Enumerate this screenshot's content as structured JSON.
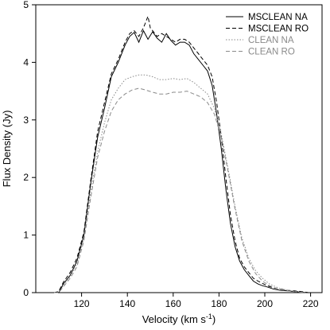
{
  "chart_data": {
    "type": "line",
    "title": "",
    "xlabel": "Velocity (km s",
    "xlabel_sup": "-1",
    "xlabel_close": ")",
    "ylabel": "Flux Density (Jy)",
    "xlim": [
      100,
      225
    ],
    "ylim": [
      0,
      5
    ],
    "xticks": [
      120,
      140,
      160,
      180,
      200,
      220
    ],
    "yticks": [
      0,
      1,
      2,
      3,
      4,
      5
    ],
    "grid": false,
    "legend_position": "top-right",
    "series": [
      {
        "name": "MSCLEAN NA",
        "color": "#000000",
        "dash": "solid",
        "x": [
          108,
          110,
          112,
          115,
          118,
          121,
          124,
          127,
          130,
          133,
          136,
          139,
          141,
          143,
          145,
          147,
          149,
          151,
          153,
          155,
          157,
          159,
          161,
          163,
          165,
          167,
          169,
          171,
          173,
          175,
          177,
          179,
          181,
          183,
          185,
          187,
          189,
          191,
          193,
          195,
          197,
          199,
          201,
          204,
          207,
          210,
          213,
          216,
          219
        ],
        "y": [
          0.0,
          0.0,
          0.15,
          0.3,
          0.55,
          1.0,
          1.9,
          2.7,
          3.2,
          3.75,
          4.0,
          4.3,
          4.45,
          4.52,
          4.35,
          4.55,
          4.4,
          4.53,
          4.42,
          4.35,
          4.5,
          4.38,
          4.3,
          4.35,
          4.35,
          4.3,
          4.15,
          4.05,
          3.95,
          3.85,
          3.6,
          3.1,
          2.5,
          1.8,
          1.2,
          0.8,
          0.55,
          0.4,
          0.3,
          0.2,
          0.15,
          0.12,
          0.1,
          0.06,
          0.04,
          0.03,
          0.02,
          0.01,
          0.0
        ]
      },
      {
        "name": "MSCLEAN RO",
        "color": "#000000",
        "dash": "dashed",
        "x": [
          108,
          110,
          112,
          115,
          118,
          121,
          124,
          127,
          130,
          133,
          136,
          139,
          141,
          143,
          145,
          147,
          149,
          150,
          151,
          153,
          155,
          157,
          159,
          161,
          163,
          165,
          167,
          169,
          171,
          173,
          175,
          177,
          179,
          181,
          183,
          185,
          187,
          189,
          191,
          193,
          195,
          197,
          199,
          201,
          204,
          207,
          210,
          213,
          216,
          219
        ],
        "y": [
          0.0,
          0.02,
          0.18,
          0.35,
          0.6,
          1.05,
          1.95,
          2.8,
          3.3,
          3.8,
          4.05,
          4.35,
          4.5,
          4.55,
          4.45,
          4.6,
          4.8,
          4.6,
          4.55,
          4.45,
          4.5,
          4.45,
          4.4,
          4.35,
          4.4,
          4.4,
          4.35,
          4.25,
          4.15,
          4.05,
          3.95,
          3.75,
          3.3,
          2.7,
          2.0,
          1.35,
          0.9,
          0.6,
          0.45,
          0.35,
          0.25,
          0.2,
          0.16,
          0.12,
          0.08,
          0.06,
          0.04,
          0.03,
          0.02,
          0.0
        ]
      },
      {
        "name": "CLEAN NA",
        "color": "#8a8a8a",
        "dash": "dotted",
        "x": [
          108,
          110,
          112,
          115,
          118,
          121,
          124,
          127,
          130,
          133,
          136,
          139,
          142,
          145,
          148,
          151,
          154,
          157,
          160,
          163,
          166,
          169,
          172,
          175,
          178,
          181,
          184,
          187,
          190,
          193,
          196,
          199,
          202,
          206,
          210,
          214,
          218
        ],
        "y": [
          0.0,
          0.0,
          0.12,
          0.28,
          0.5,
          0.95,
          1.75,
          2.45,
          2.95,
          3.35,
          3.55,
          3.7,
          3.75,
          3.78,
          3.78,
          3.75,
          3.7,
          3.7,
          3.72,
          3.7,
          3.72,
          3.65,
          3.55,
          3.45,
          3.2,
          2.75,
          2.15,
          1.5,
          0.95,
          0.6,
          0.38,
          0.25,
          0.15,
          0.08,
          0.04,
          0.02,
          0.0
        ]
      },
      {
        "name": "CLEAN RO",
        "color": "#8a8a8a",
        "dash": "dashed",
        "x": [
          108,
          110,
          112,
          115,
          118,
          121,
          124,
          127,
          130,
          133,
          136,
          139,
          142,
          145,
          148,
          151,
          154,
          157,
          160,
          163,
          166,
          169,
          172,
          175,
          178,
          181,
          184,
          187,
          190,
          193,
          196,
          199,
          202,
          206,
          210,
          214,
          218
        ],
        "y": [
          0.0,
          0.0,
          0.1,
          0.25,
          0.45,
          0.9,
          1.65,
          2.35,
          2.8,
          3.15,
          3.35,
          3.45,
          3.52,
          3.55,
          3.52,
          3.48,
          3.45,
          3.45,
          3.48,
          3.48,
          3.5,
          3.45,
          3.4,
          3.3,
          3.1,
          2.7,
          2.1,
          1.45,
          0.9,
          0.55,
          0.33,
          0.2,
          0.12,
          0.06,
          0.03,
          0.01,
          0.0
        ]
      }
    ]
  }
}
